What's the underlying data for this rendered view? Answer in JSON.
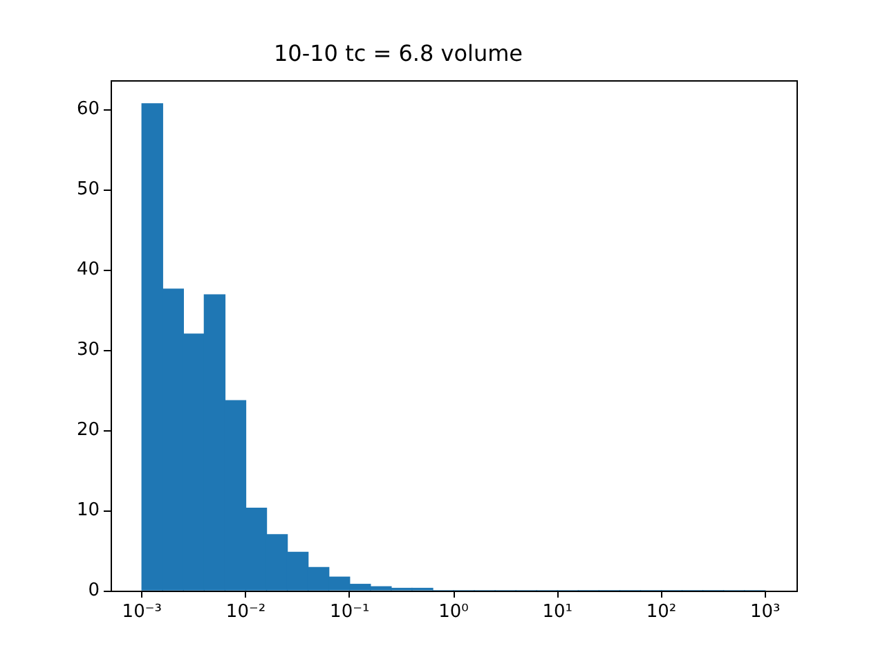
{
  "chart_data": {
    "type": "histogram",
    "title": "10-10 tc = 6.8 volume",
    "bins": [
      0.001,
      0.001585,
      0.002512,
      0.003981,
      0.00631,
      0.01,
      0.01585,
      0.02512,
      0.03981,
      0.0631,
      0.1,
      0.1585,
      0.2512,
      0.3981,
      0.631,
      1,
      1.585,
      2.512,
      3.981,
      6.31,
      10,
      15.85,
      25.12,
      39.81,
      63.1,
      100,
      158.5,
      251.2,
      398.1,
      631,
      1000
    ],
    "values": [
      60.7,
      37.6,
      32.0,
      36.9,
      23.7,
      10.3,
      7.0,
      4.8,
      2.9,
      1.7,
      0.8,
      0.5,
      0.3,
      0.3,
      0,
      0,
      0,
      0,
      0,
      0,
      0,
      0,
      0,
      0,
      0,
      0,
      0,
      0,
      0,
      0
    ],
    "color": "#1f77b4",
    "log": "x",
    "xlim": [
      0.0005,
      2000
    ],
    "xticks": [
      {
        "value": 0.001,
        "label": "10⁻³"
      },
      {
        "value": 0.01,
        "label": "10⁻²"
      },
      {
        "value": 0.1,
        "label": "10⁻¹"
      },
      {
        "value": 1,
        "label": "10⁰"
      },
      {
        "value": 10,
        "label": "10¹"
      },
      {
        "value": 100,
        "label": "10²"
      },
      {
        "value": 1000,
        "label": "10³"
      }
    ],
    "ylim": [
      0,
      63.6
    ],
    "yticks": [
      0,
      10,
      20,
      30,
      40,
      50,
      60
    ],
    "grid": false,
    "legend": false
  }
}
